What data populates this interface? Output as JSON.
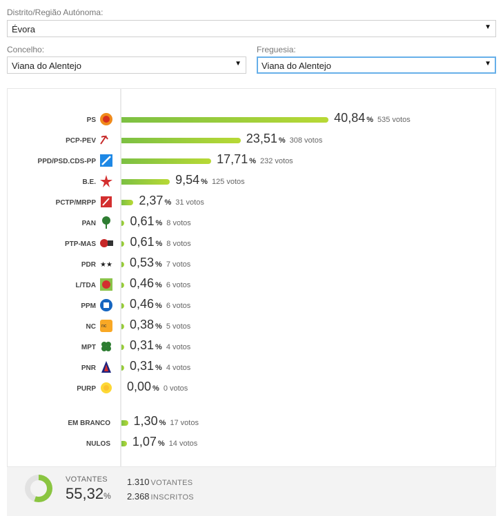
{
  "filters": {
    "distrito_label": "Distrito/Região Autónoma:",
    "distrito_value": "Évora",
    "concelho_label": "Concelho:",
    "concelho_value": "Viana do Alentejo",
    "freguesia_label": "Freguesia:",
    "freguesia_value": "Viana do Alentejo"
  },
  "chart_data": {
    "type": "bar",
    "orientation": "horizontal",
    "unit": "%",
    "categories": [
      "PS",
      "PCP-PEV",
      "PPD/PSD.CDS-PP",
      "B.E.",
      "PCTP/MRPP",
      "PAN",
      "PTP-MAS",
      "PDR",
      "L/TDA",
      "PPM",
      "NC",
      "MPT",
      "PNR",
      "PURP",
      "EM BRANCO",
      "NULOS"
    ],
    "values": [
      40.84,
      23.51,
      17.71,
      9.54,
      2.37,
      0.61,
      0.61,
      0.53,
      0.46,
      0.46,
      0.38,
      0.31,
      0.31,
      0.0,
      1.3,
      1.07
    ],
    "rows": [
      {
        "name": "PS",
        "pct": "40,84",
        "votes": "535 votos",
        "value": 40.84,
        "icon": "ps-rose-fist-icon"
      },
      {
        "name": "PCP-PEV",
        "pct": "23,51",
        "votes": "308 votos",
        "value": 23.51,
        "icon": "hammer-sickle-sunflower-icon"
      },
      {
        "name": "PPD/PSD.CDS-PP",
        "pct": "17,71",
        "votes": "232 votos",
        "value": 17.71,
        "icon": "psd-arrows-icon"
      },
      {
        "name": "B.E.",
        "pct": "9,54",
        "votes": "125 votos",
        "value": 9.54,
        "icon": "be-star-figure-icon"
      },
      {
        "name": "PCTP/MRPP",
        "pct": "2,37",
        "votes": "31 votos",
        "value": 2.37,
        "icon": "mrpp-hammer-sickle-icon"
      },
      {
        "name": "PAN",
        "pct": "0,61",
        "votes": "8 votos",
        "value": 0.61,
        "icon": "pan-tree-icon"
      },
      {
        "name": "PTP-MAS",
        "pct": "0,61",
        "votes": "8 votos",
        "value": 0.61,
        "icon": "ptp-mas-logo-icon"
      },
      {
        "name": "PDR",
        "pct": "0,53",
        "votes": "7 votos",
        "value": 0.53,
        "icon": "pdr-stars-icon"
      },
      {
        "name": "L/TDA",
        "pct": "0,46",
        "votes": "6 votos",
        "value": 0.46,
        "icon": "livre-poppy-icon"
      },
      {
        "name": "PPM",
        "pct": "0,46",
        "votes": "6 votos",
        "value": 0.46,
        "icon": "ppm-logo-icon"
      },
      {
        "name": "NC",
        "pct": "0,38",
        "votes": "5 votos",
        "value": 0.38,
        "icon": "nc-logo-icon"
      },
      {
        "name": "MPT",
        "pct": "0,31",
        "votes": "4 votos",
        "value": 0.31,
        "icon": "mpt-clover-icon"
      },
      {
        "name": "PNR",
        "pct": "0,31",
        "votes": "4 votos",
        "value": 0.31,
        "icon": "pnr-flame-icon"
      },
      {
        "name": "PURP",
        "pct": "0,00",
        "votes": "0 votos",
        "value": 0.0,
        "icon": "purp-sun-icon"
      },
      {
        "name": "EM BRANCO",
        "pct": "1,30",
        "votes": "17 votos",
        "value": 1.3,
        "icon": ""
      },
      {
        "name": "NULOS",
        "pct": "1,07",
        "votes": "14 votos",
        "value": 1.07,
        "icon": ""
      }
    ],
    "pct_symbol": "%",
    "bar_color": "#7cc043",
    "grid": false
  },
  "summary": {
    "votantes_label": "VOTANTES",
    "votantes_pct": "55,32",
    "pct_symbol": "%",
    "votantes_fraction": 0.5532,
    "votantes_count": "1.310",
    "votantes_unit": "VOTANTES",
    "inscritos_count": "2.368",
    "inscritos_unit": "INSCRITOS"
  },
  "colors": {
    "bar_start": "#7cc043",
    "bar_end": "#b8d935",
    "donut": "#8ac541"
  }
}
